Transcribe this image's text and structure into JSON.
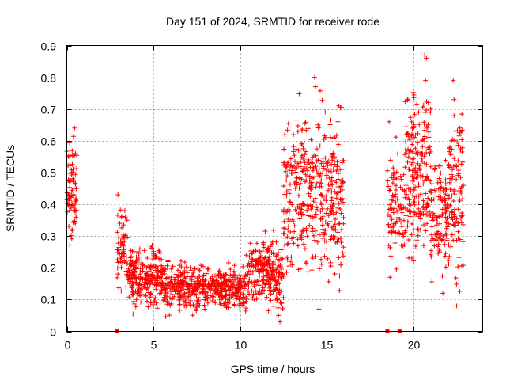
{
  "chart_data": {
    "type": "scatter",
    "title": "Day 151 of 2024, SRMTID for receiver rode",
    "xlabel": "GPS time / hours",
    "ylabel": "SRMTID / TECUs",
    "xlim": [
      0,
      24
    ],
    "ylim": [
      0,
      0.9
    ],
    "xticks": [
      0,
      5,
      10,
      15,
      20
    ],
    "yticks": [
      0,
      0.1,
      0.2,
      0.3,
      0.4,
      0.5,
      0.6,
      0.7,
      0.8,
      0.9
    ],
    "xtick_labels": [
      "0",
      "5",
      "10",
      "15",
      "20"
    ],
    "ytick_labels": [
      "0",
      "0.1",
      "0.2",
      "0.3",
      "0.4",
      "0.5",
      "0.6",
      "0.7",
      "0.8",
      "0.9"
    ],
    "grid": true,
    "marker": "+",
    "color": "#ff0000",
    "zero_markers_x": [
      2.9,
      18.5,
      19.2
    ],
    "segments": [
      {
        "t0": 0.0,
        "t1": 0.6,
        "lo": 0.22,
        "hi": 0.64,
        "n": 80
      },
      {
        "t0": 2.9,
        "t1": 3.5,
        "lo": 0.08,
        "hi": 0.43,
        "n": 60
      },
      {
        "t0": 3.5,
        "t1": 5.5,
        "lo": 0.04,
        "hi": 0.3,
        "n": 240
      },
      {
        "t0": 5.5,
        "t1": 10.5,
        "lo": 0.04,
        "hi": 0.24,
        "n": 520
      },
      {
        "t0": 10.5,
        "t1": 12.0,
        "lo": 0.05,
        "hi": 0.33,
        "n": 180
      },
      {
        "t0": 12.0,
        "t1": 12.5,
        "lo": 0.02,
        "hi": 0.3,
        "n": 60
      },
      {
        "t0": 12.5,
        "t1": 16.0,
        "lo": 0.07,
        "hi": 0.8,
        "n": 420
      },
      {
        "t0": 18.5,
        "t1": 19.5,
        "lo": 0.15,
        "hi": 0.66,
        "n": 90
      },
      {
        "t0": 19.5,
        "t1": 21.0,
        "lo": 0.12,
        "hi": 0.87,
        "n": 200
      },
      {
        "t0": 21.0,
        "t1": 22.0,
        "lo": 0.12,
        "hi": 0.6,
        "n": 110
      },
      {
        "t0": 22.0,
        "t1": 22.9,
        "lo": 0.08,
        "hi": 0.79,
        "n": 110
      }
    ],
    "peaks": [
      {
        "x": 0.1,
        "y": 0.55
      },
      {
        "x": 0.45,
        "y": 0.64
      },
      {
        "x": 0.5,
        "y": 0.56
      },
      {
        "x": 2.95,
        "y": 0.43
      },
      {
        "x": 3.35,
        "y": 0.38
      },
      {
        "x": 5.1,
        "y": 0.24
      },
      {
        "x": 10.35,
        "y": 0.24
      },
      {
        "x": 11.4,
        "y": 0.23
      },
      {
        "x": 12.3,
        "y": 0.03
      },
      {
        "x": 13.2,
        "y": 0.47
      },
      {
        "x": 14.3,
        "y": 0.8
      },
      {
        "x": 14.35,
        "y": 0.77
      },
      {
        "x": 14.5,
        "y": 0.65
      },
      {
        "x": 14.55,
        "y": 0.07
      },
      {
        "x": 15.7,
        "y": 0.71
      },
      {
        "x": 15.65,
        "y": 0.66
      },
      {
        "x": 18.6,
        "y": 0.66
      },
      {
        "x": 18.65,
        "y": 0.17
      },
      {
        "x": 19.9,
        "y": 0.66
      },
      {
        "x": 20.3,
        "y": 0.69
      },
      {
        "x": 20.65,
        "y": 0.87
      },
      {
        "x": 20.75,
        "y": 0.86
      },
      {
        "x": 20.7,
        "y": 0.79
      },
      {
        "x": 21.0,
        "y": 0.7
      },
      {
        "x": 22.3,
        "y": 0.79
      },
      {
        "x": 22.35,
        "y": 0.73
      },
      {
        "x": 22.4,
        "y": 0.63
      },
      {
        "x": 22.2,
        "y": 0.6
      },
      {
        "x": 21.7,
        "y": 0.12
      },
      {
        "x": 22.5,
        "y": 0.08
      }
    ]
  }
}
